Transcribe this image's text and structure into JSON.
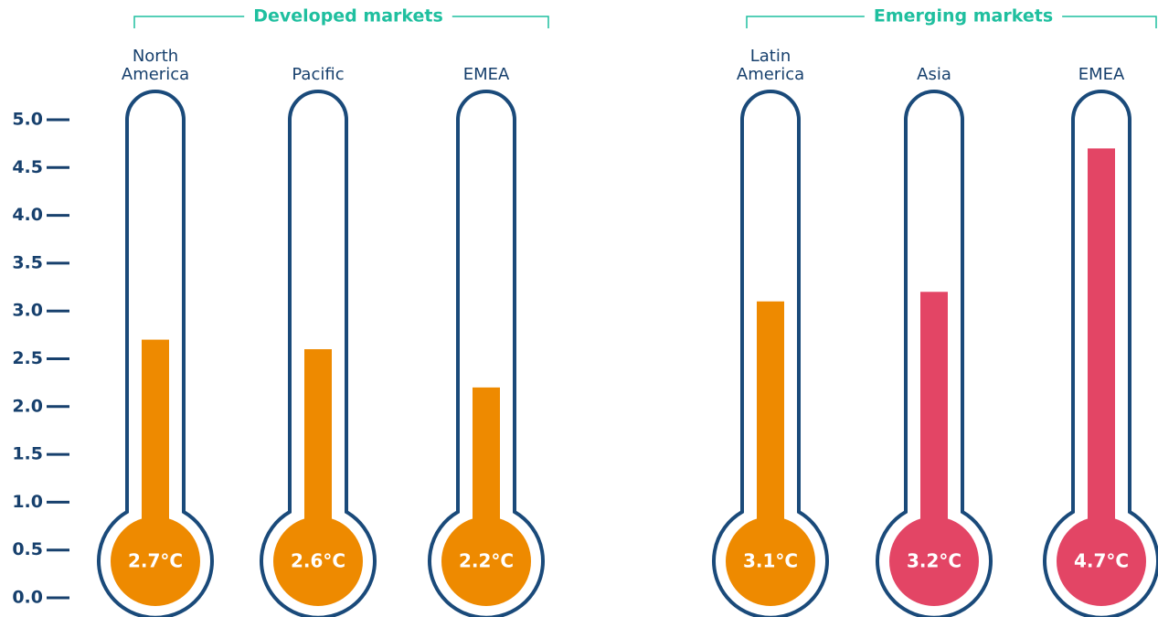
{
  "chart_data": {
    "type": "thermometer",
    "ylim": [
      0,
      5
    ],
    "yticks": [
      {
        "value": 0,
        "label": "0.0"
      },
      0.5,
      {
        "value": 1,
        "label": "1.0"
      },
      1.5,
      {
        "value": 2,
        "label": "2.0"
      },
      2.5,
      {
        "value": 3,
        "label": "3.0"
      },
      3.5,
      {
        "value": 4,
        "label": "4.0"
      },
      4.5,
      {
        "value": 5,
        "label": "5.0"
      }
    ],
    "groups": [
      {
        "name": "Developed markets",
        "categories": [
          "North America",
          "Pacific",
          "EMEA"
        ],
        "values": [
          2.7,
          2.6,
          2.2
        ],
        "value_labels": [
          "2.7°C",
          "2.6°C",
          "2.2°C"
        ],
        "colors": [
          "#ee8a00",
          "#ee8a00",
          "#ee8a00"
        ]
      },
      {
        "name": "Emerging markets",
        "categories": [
          "Latin America",
          "Asia",
          "EMEA"
        ],
        "values": [
          3.1,
          3.2,
          4.7
        ],
        "value_labels": [
          "3.1°C",
          "3.2°C",
          "4.7°C"
        ],
        "colors": [
          "#ee8a00",
          "#e34565",
          "#e34565"
        ]
      }
    ]
  }
}
